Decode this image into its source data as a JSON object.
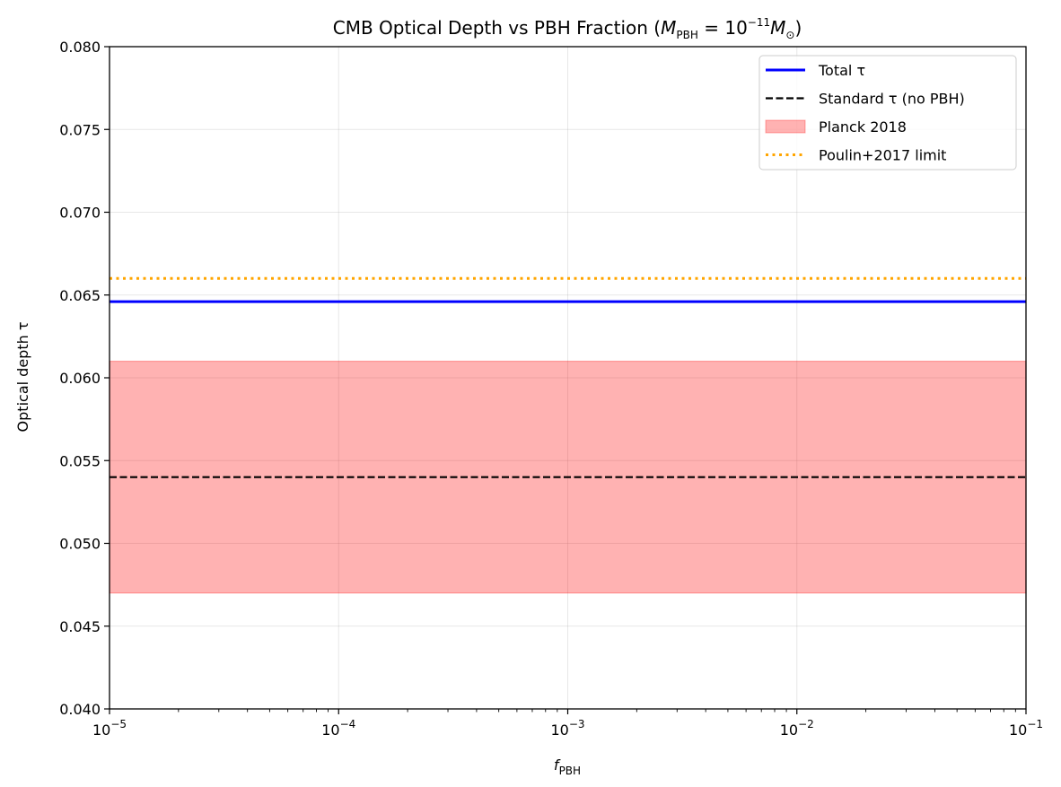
{
  "chart_data": {
    "type": "line",
    "title": {
      "prefix": "CMB Optical Depth vs PBH Fraction (",
      "math": "M_PBH = 10^-11 M_⊙",
      "suffix": ")",
      "math_parts": {
        "m": "M",
        "m_sub": "PBH",
        "eq": " = 10",
        "exp": "−11",
        "m2": "M",
        "m2_sub": "⊙"
      }
    },
    "xlabel": {
      "base": "f",
      "sub": "PBH"
    },
    "ylabel": "Optical depth τ",
    "x_scale": "log",
    "xlim": [
      1e-05,
      0.1
    ],
    "ylim": [
      0.04,
      0.08
    ],
    "x_ticks": [
      {
        "value": 1e-05,
        "base": "10",
        "exp": "−5"
      },
      {
        "value": 0.0001,
        "base": "10",
        "exp": "−4"
      },
      {
        "value": 0.001,
        "base": "10",
        "exp": "−3"
      },
      {
        "value": 0.01,
        "base": "10",
        "exp": "−2"
      },
      {
        "value": 0.1,
        "base": "10",
        "exp": "−1"
      }
    ],
    "y_ticks": [
      {
        "value": 0.04,
        "label": "0.040"
      },
      {
        "value": 0.045,
        "label": "0.045"
      },
      {
        "value": 0.05,
        "label": "0.050"
      },
      {
        "value": 0.055,
        "label": "0.055"
      },
      {
        "value": 0.06,
        "label": "0.060"
      },
      {
        "value": 0.065,
        "label": "0.065"
      },
      {
        "value": 0.07,
        "label": "0.070"
      },
      {
        "value": 0.075,
        "label": "0.075"
      },
      {
        "value": 0.08,
        "label": "0.080"
      }
    ],
    "grid": true,
    "legend_position": "top-right",
    "series": [
      {
        "name": "Total τ",
        "kind": "line",
        "style": "solid",
        "color": "#0000ff",
        "x": [
          1e-05,
          0.1
        ],
        "y": [
          0.0646,
          0.0646
        ]
      },
      {
        "name": "Standard τ (no PBH)",
        "kind": "line",
        "style": "dashed",
        "color": "#000000",
        "x": [
          1e-05,
          0.1
        ],
        "y": [
          0.054,
          0.054
        ]
      },
      {
        "name": "Planck 2018",
        "kind": "band",
        "color": "#ff0000",
        "x": [
          1e-05,
          0.1
        ],
        "y_low": 0.047,
        "y_high": 0.061
      },
      {
        "name": "Poulin+2017 limit",
        "kind": "line",
        "style": "dotted",
        "color": "#ffa500",
        "x": [
          1e-05,
          0.1
        ],
        "y": [
          0.066,
          0.066
        ]
      }
    ]
  }
}
